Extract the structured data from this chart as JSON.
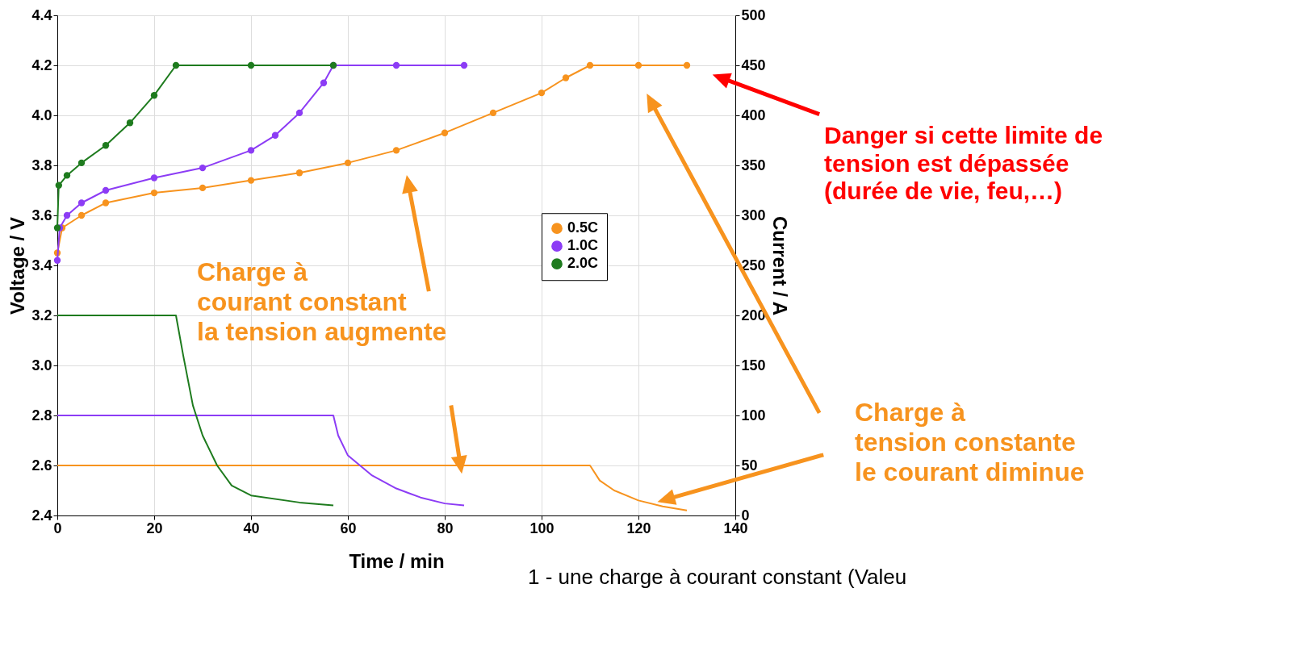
{
  "chart_data": {
    "type": "line",
    "xlabel": "Time / min",
    "ylabel": "Voltage / V",
    "y2label": "Current / A",
    "xlim": [
      0,
      140
    ],
    "xticks": [
      0,
      20,
      40,
      60,
      80,
      100,
      120,
      140
    ],
    "ylim": [
      2.4,
      4.4
    ],
    "yticks": [
      2.4,
      2.6,
      2.8,
      {
        "value": 3,
        "label": "3.0"
      },
      3.2,
      3.4,
      3.6,
      3.8,
      {
        "value": 4,
        "label": "4.0"
      },
      4.2,
      4.4
    ],
    "y2lim": [
      0,
      500
    ],
    "y2ticks": [
      0,
      50,
      100,
      150,
      200,
      250,
      300,
      350,
      400,
      450,
      500
    ],
    "grid": true,
    "legend": "right",
    "line_style": "solid",
    "series": [
      {
        "name": "0.5C",
        "color": "#f7931e",
        "marker": "circle",
        "x": [
          0,
          1,
          5,
          10,
          20,
          30,
          40,
          50,
          60,
          70,
          80,
          90,
          100,
          105,
          110,
          120,
          130
        ],
        "values": [
          3.45,
          3.55,
          3.6,
          3.65,
          3.69,
          3.71,
          3.74,
          3.77,
          3.81,
          3.86,
          3.93,
          4.01,
          4.09,
          4.15,
          4.2,
          4.2,
          4.2
        ]
      },
      {
        "name": "1.0C",
        "color": "#8c3cf5",
        "marker": "circle",
        "x": [
          0,
          0.5,
          2,
          5,
          10,
          20,
          30,
          40,
          45,
          50,
          55,
          57,
          70,
          84
        ],
        "values": [
          3.42,
          3.55,
          3.6,
          3.65,
          3.7,
          3.75,
          3.79,
          3.86,
          3.92,
          4.01,
          4.13,
          4.2,
          4.2,
          4.2
        ]
      },
      {
        "name": "2.0C",
        "color": "#1e7b1e",
        "marker": "circle",
        "x": [
          0,
          0.3,
          2,
          5,
          10,
          15,
          20,
          24.5,
          40,
          57
        ],
        "values": [
          3.55,
          3.72,
          3.76,
          3.81,
          3.88,
          3.97,
          4.08,
          4.2,
          4.2,
          4.2
        ]
      },
      {
        "color": "#f7931e",
        "axis": "y2",
        "marker": "none",
        "x": [
          0,
          110,
          112,
          115,
          120,
          125,
          130
        ],
        "values": [
          50,
          50,
          35,
          25,
          15,
          9,
          5
        ]
      },
      {
        "color": "#8c3cf5",
        "axis": "y2",
        "marker": "none",
        "x": [
          0,
          57,
          58,
          60,
          65,
          70,
          75,
          80,
          84
        ],
        "values": [
          100,
          100,
          80,
          60,
          40,
          27,
          18,
          12,
          10
        ]
      },
      {
        "color": "#1e7b1e",
        "axis": "y2",
        "marker": "none",
        "x": [
          0,
          24.5,
          26,
          28,
          30,
          33,
          36,
          40,
          50,
          57
        ],
        "values": [
          200,
          200,
          160,
          110,
          80,
          50,
          30,
          20,
          13,
          10
        ]
      }
    ],
    "annotations": [
      "Danger si cette limite de\ntension est dépassée\n(durée de vie, feu,…)",
      "Charge à\ncourant constant\nla tension augmente",
      "Charge à\ntension constante\nle courant diminue",
      "1 - une charge à courant constant (Valeu"
    ]
  }
}
